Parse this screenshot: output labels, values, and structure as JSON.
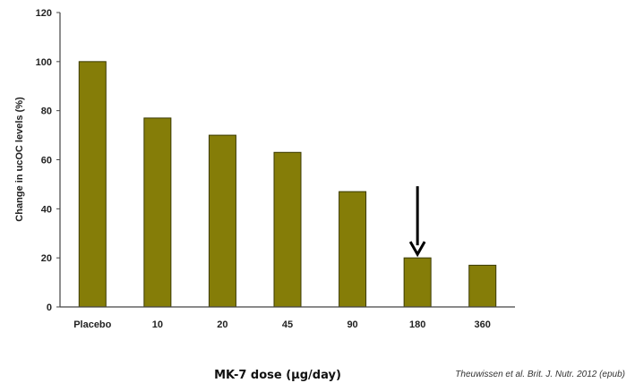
{
  "chart_data": {
    "type": "bar",
    "categories": [
      "Placebo",
      "10",
      "20",
      "45",
      "90",
      "180",
      "360"
    ],
    "values": [
      100,
      77,
      70,
      63,
      47,
      20,
      17
    ],
    "xlabel": "MK-7 dose (µg/day)",
    "ylabel": "Change in ucOC levels (%)",
    "ylim": [
      0,
      120
    ],
    "yticks": [
      "0",
      "20",
      "40",
      "60",
      "80",
      "100",
      "120"
    ],
    "bar_color": "#857d08",
    "bar_stroke": "#3a3a00",
    "grid": false,
    "annotation": {
      "type": "arrow",
      "target_category": "180"
    },
    "citation": "Theuwissen et al. Brit. J. Nutr. 2012 (epub)"
  }
}
